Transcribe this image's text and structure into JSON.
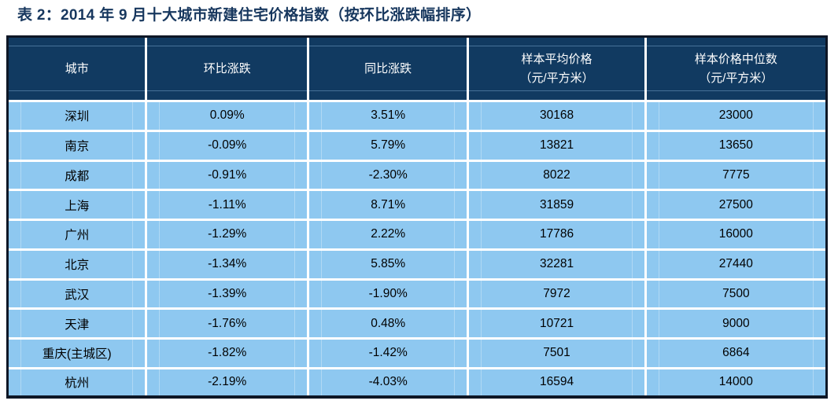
{
  "title": "表 2：2014 年 9 月十大城市新建住宅价格指数（按环比涨跌幅排序）",
  "table": {
    "columns": [
      {
        "line1": "城市",
        "line2": ""
      },
      {
        "line1": "环比涨跌",
        "line2": ""
      },
      {
        "line1": "同比涨跌",
        "line2": ""
      },
      {
        "line1": "样本平均价格",
        "line2": "（元/平方米）"
      },
      {
        "line1": "样本价格中位数",
        "line2": "（元/平方米）"
      }
    ],
    "rows": [
      [
        "深圳",
        "0.09%",
        "3.51%",
        "30168",
        "23000"
      ],
      [
        "南京",
        "-0.09%",
        "5.79%",
        "13821",
        "13650"
      ],
      [
        "成都",
        "-0.91%",
        "-2.30%",
        "8022",
        "7775"
      ],
      [
        "上海",
        "-1.11%",
        "8.71%",
        "31859",
        "27500"
      ],
      [
        "广州",
        "-1.29%",
        "2.22%",
        "17786",
        "16000"
      ],
      [
        "北京",
        "-1.34%",
        "5.85%",
        "32281",
        "27440"
      ],
      [
        "武汉",
        "-1.39%",
        "-1.90%",
        "7972",
        "7500"
      ],
      [
        "天津",
        "-1.76%",
        "0.48%",
        "10721",
        "9000"
      ],
      [
        "重庆(主城区)",
        "-1.82%",
        "-1.42%",
        "7501",
        "6864"
      ],
      [
        "杭州",
        "-2.19%",
        "-4.03%",
        "16594",
        "14000"
      ]
    ]
  },
  "colors": {
    "title_text": "#17375E",
    "header_bg": "#113A61",
    "header_text": "#FFFFFF",
    "row_bg": "#8EC8F0",
    "grid_lines": "#FFFFFF",
    "outer_border": "#0E1726",
    "body_text": "#000000"
  }
}
